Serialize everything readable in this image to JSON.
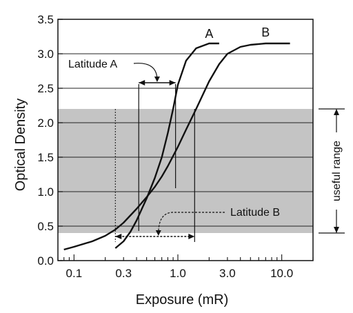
{
  "chart_data": {
    "type": "line",
    "xlabel": "Exposure (mR)",
    "ylabel": "Optical Density",
    "x_scale": "log",
    "xlim": [
      0.07,
      20
    ],
    "ylim": [
      0,
      3.5
    ],
    "x_ticks": [
      {
        "value": 0.1,
        "label": "0.1"
      },
      {
        "value": 0.3,
        "label": "0.3"
      },
      {
        "value": 1.0,
        "label": "1.0"
      },
      {
        "value": 3.0,
        "label": "3.0"
      },
      {
        "value": 10.0,
        "label": "10.0"
      }
    ],
    "y_ticks": [
      {
        "value": 0,
        "label": "0.0"
      },
      {
        "value": 0.5,
        "label": "0.5"
      },
      {
        "value": 1.0,
        "label": "1.0"
      },
      {
        "value": 1.5,
        "label": "1.5"
      },
      {
        "value": 2.0,
        "label": "2.0"
      },
      {
        "value": 2.5,
        "label": "2.5"
      },
      {
        "value": 3.0,
        "label": "3.0"
      },
      {
        "value": 3.5,
        "label": "3.5"
      }
    ],
    "horizontal_lines": [
      0.5,
      1.0,
      1.5,
      2.0,
      2.5,
      3.0
    ],
    "shaded_band": {
      "y_from": 0.4,
      "y_to": 2.2,
      "color": "#c4c4c4"
    },
    "series": [
      {
        "name": "A",
        "x": [
          0.25,
          0.3,
          0.35,
          0.4,
          0.45,
          0.5,
          0.6,
          0.7,
          0.8,
          0.9,
          1.0,
          1.2,
          1.5,
          2.0,
          2.5
        ],
        "y": [
          0.18,
          0.28,
          0.42,
          0.58,
          0.75,
          0.9,
          1.2,
          1.5,
          1.85,
          2.2,
          2.55,
          2.9,
          3.08,
          3.15,
          3.15
        ]
      },
      {
        "name": "B",
        "x": [
          0.08,
          0.1,
          0.15,
          0.2,
          0.25,
          0.3,
          0.4,
          0.5,
          0.6,
          0.7,
          0.8,
          1.0,
          1.2,
          1.5,
          2.0,
          2.5,
          3.0,
          4.0,
          5.0,
          7.0,
          10.0,
          12.0
        ],
        "y": [
          0.16,
          0.2,
          0.28,
          0.36,
          0.45,
          0.55,
          0.75,
          0.92,
          1.07,
          1.22,
          1.37,
          1.65,
          1.9,
          2.2,
          2.6,
          2.85,
          3.0,
          3.1,
          3.13,
          3.15,
          3.15,
          3.15
        ]
      }
    ],
    "annotations": {
      "latitude_a": {
        "text": "Latitude A",
        "x_from": 0.42,
        "x_to": 0.95,
        "y": 2.5
      },
      "latitude_b": {
        "text": "Latitude B",
        "x_from": 0.25,
        "x_to": 1.45,
        "y": 0.35
      },
      "useful_range": {
        "text": "useful range",
        "y_from": 0.4,
        "y_to": 2.2
      }
    },
    "grid": false
  }
}
